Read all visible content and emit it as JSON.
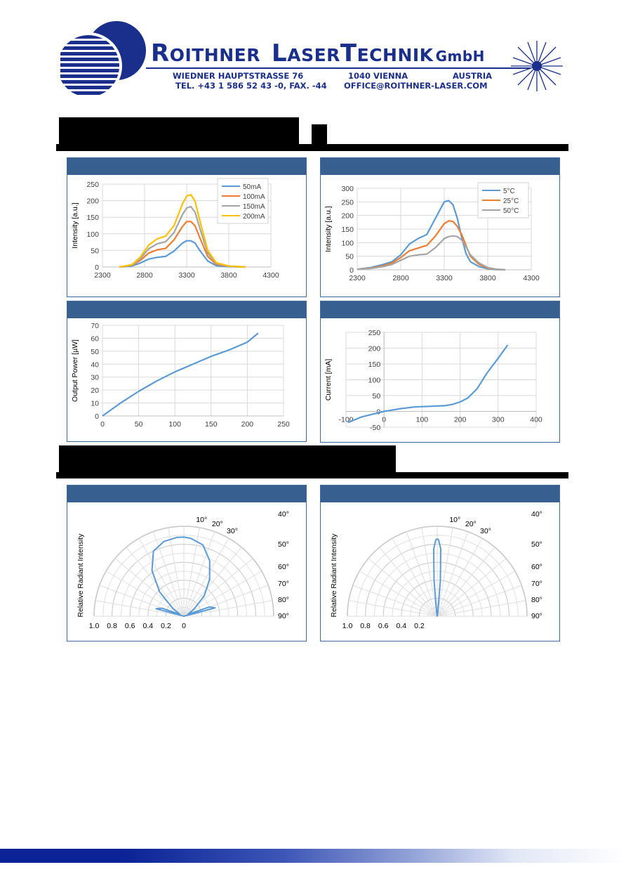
{
  "company": {
    "name_r": "R",
    "name_oithner": "OITHNER",
    "name_l": "L",
    "name_aser": "ASER",
    "name_t": "T",
    "name_echnik": "ECHNIK",
    "name_gmbh": "GmbH",
    "street": "WIEDNER HAUPTSTRASSE 76",
    "city": "1040 VIENNA",
    "country": "AUSTRIA",
    "tel": "TEL. +43 1 586 52 43 -0, FAX. -44",
    "email": "OFFICE@ROITHNER-LASER.COM"
  },
  "colors": {
    "brand_blue": "#1a2f8c",
    "panel_header": "#375f8f",
    "series_blue": "#5b9bd5",
    "series_orange": "#ed7d31",
    "series_gray": "#a5a5a5",
    "series_yellow": "#ffc000"
  },
  "icons": [
    "striped-globe-logo-icon",
    "laser-starburst-icon"
  ],
  "chart_data": [
    {
      "type": "line",
      "title": "",
      "xlabel": "",
      "ylabel": "Intensity [a.u.]",
      "xlim": [
        2300,
        4300
      ],
      "ylim": [
        0,
        250
      ],
      "xticks": [
        "2300",
        "2800",
        "3300",
        "3800",
        "4300"
      ],
      "yticks": [
        "0",
        "50",
        "100",
        "150",
        "200",
        "250"
      ],
      "legend": "top-right",
      "grid": true,
      "x": [
        2500,
        2650,
        2750,
        2850,
        2950,
        3050,
        3150,
        3250,
        3300,
        3350,
        3400,
        3450,
        3550,
        3650,
        3800,
        4000
      ],
      "series": [
        {
          "name": "50mA",
          "color": "#5b9bd5",
          "values": [
            0,
            3,
            12,
            24,
            29,
            32,
            48,
            72,
            79,
            79,
            72,
            52,
            18,
            4,
            1,
            0
          ]
        },
        {
          "name": "100mA",
          "color": "#ed7d31",
          "values": [
            0,
            5,
            20,
            42,
            52,
            56,
            82,
            122,
            137,
            137,
            124,
            92,
            32,
            8,
            2,
            0
          ]
        },
        {
          "name": "150mA",
          "color": "#a5a5a5",
          "values": [
            0,
            6,
            25,
            55,
            70,
            76,
            104,
            158,
            178,
            182,
            165,
            122,
            42,
            11,
            2,
            0
          ]
        },
        {
          "name": "200mA",
          "color": "#ffc000",
          "values": [
            0,
            7,
            30,
            66,
            85,
            93,
            125,
            190,
            214,
            218,
            198,
            146,
            50,
            13,
            3,
            0
          ]
        }
      ]
    },
    {
      "type": "line",
      "title": "",
      "xlabel": "",
      "ylabel": "Intensity [a.u.]",
      "xlim": [
        2300,
        4300
      ],
      "ylim": [
        0,
        300
      ],
      "xticks": [
        "2300",
        "2800",
        "3300",
        "3800",
        "4300"
      ],
      "yticks": [
        "0",
        "50",
        "100",
        "150",
        "200",
        "250",
        "300"
      ],
      "legend": "top-right",
      "grid": true,
      "x": [
        2300,
        2450,
        2600,
        2700,
        2800,
        2900,
        3000,
        3100,
        3200,
        3300,
        3350,
        3400,
        3450,
        3500,
        3550,
        3600,
        3700,
        3800,
        3900,
        4000
      ],
      "series": [
        {
          "name": "5°C",
          "color": "#5b9bd5",
          "values": [
            2,
            8,
            20,
            30,
            55,
            95,
            115,
            130,
            190,
            250,
            255,
            240,
            190,
            120,
            60,
            30,
            12,
            4,
            1,
            0
          ]
        },
        {
          "name": "25°C",
          "color": "#ed7d31",
          "values": [
            2,
            6,
            15,
            25,
            45,
            70,
            80,
            90,
            125,
            170,
            180,
            178,
            160,
            130,
            90,
            50,
            20,
            6,
            2,
            0
          ]
        },
        {
          "name": "50°C",
          "color": "#a5a5a5",
          "values": [
            2,
            5,
            12,
            20,
            35,
            50,
            55,
            58,
            82,
            115,
            122,
            125,
            122,
            110,
            85,
            55,
            25,
            8,
            2,
            0
          ]
        }
      ]
    },
    {
      "type": "line",
      "title": "",
      "xlabel": "",
      "ylabel": "Output Power [µW]",
      "xlim": [
        0,
        250
      ],
      "ylim": [
        0,
        70
      ],
      "xticks": [
        "0",
        "50",
        "100",
        "150",
        "200",
        "250"
      ],
      "yticks": [
        "0",
        "10",
        "20",
        "30",
        "40",
        "50",
        "60",
        "70"
      ],
      "grid": true,
      "x": [
        0,
        25,
        50,
        75,
        100,
        125,
        150,
        175,
        200,
        215
      ],
      "series": [
        {
          "name": "",
          "color": "#5b9bd5",
          "values": [
            0,
            10,
            19,
            27,
            34,
            40,
            46,
            51,
            57,
            64
          ]
        }
      ]
    },
    {
      "type": "line",
      "title": "",
      "xlabel": "",
      "ylabel": "Current [mA]",
      "xlim": [
        -100,
        400
      ],
      "ylim": [
        -50,
        250
      ],
      "xticks": [
        "-100",
        "0",
        "100",
        "200",
        "300",
        "400"
      ],
      "yticks": [
        "-50",
        "0",
        "50",
        "100",
        "150",
        "200",
        "250"
      ],
      "grid": true,
      "x": [
        -95,
        -60,
        -20,
        0,
        40,
        80,
        120,
        160,
        180,
        200,
        220,
        245,
        270,
        300,
        325
      ],
      "series": [
        {
          "name": "",
          "color": "#5b9bd5",
          "values": [
            -35,
            -18,
            -6,
            0,
            8,
            14,
            16,
            18,
            22,
            30,
            42,
            72,
            120,
            168,
            210
          ]
        }
      ]
    },
    {
      "type": "polar",
      "title": "",
      "ylabel": "Relative Radiant Intensity",
      "angle_labels_top": [
        "10°",
        "20°",
        "30°"
      ],
      "angle_labels_right": [
        "40°",
        "50°",
        "60°",
        "70°",
        "80°",
        "90°"
      ],
      "radius_labels": [
        "1.0",
        "0.8",
        "0.6",
        "0.4",
        "0.2",
        "0"
      ],
      "angles_deg": [
        -80,
        -75,
        -70,
        -65,
        -55,
        -45,
        -35,
        -25,
        -15,
        -5,
        0,
        5,
        15,
        25,
        35,
        45,
        55,
        65,
        70,
        75,
        80
      ],
      "series": [
        {
          "name": "",
          "color": "#5b9bd5",
          "values": [
            0.0,
            0.32,
            0.26,
            0.05,
            0.15,
            0.38,
            0.62,
            0.8,
            0.86,
            0.88,
            0.88,
            0.87,
            0.82,
            0.68,
            0.5,
            0.32,
            0.14,
            0.05,
            0.3,
            0.36,
            0.0
          ]
        }
      ]
    },
    {
      "type": "polar",
      "title": "",
      "ylabel": "Relative Radiant Intensity",
      "angle_labels_top": [
        "10°",
        "20°",
        "30°"
      ],
      "angle_labels_right": [
        "40°",
        "50°",
        "60°",
        "70°",
        "80°",
        "90°"
      ],
      "radius_labels": [
        "1.0",
        "0.8",
        "0.6",
        "0.4",
        "0.2"
      ],
      "angles_deg": [
        -20,
        -8,
        -5,
        -3,
        -1,
        0,
        1,
        3,
        5,
        8,
        20
      ],
      "series": [
        {
          "name": "",
          "color": "#5b9bd5",
          "values": [
            0.0,
            0.05,
            0.4,
            0.75,
            0.85,
            0.86,
            0.85,
            0.75,
            0.4,
            0.05,
            0.0
          ]
        }
      ]
    }
  ]
}
